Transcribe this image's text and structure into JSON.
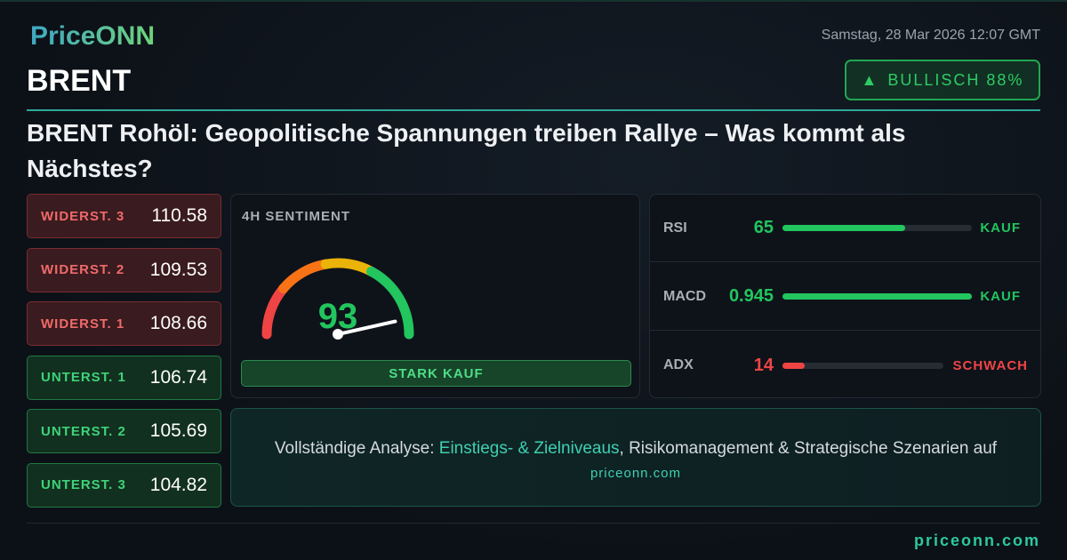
{
  "brand": {
    "logo": "PriceONN",
    "footer_url": "priceonn.com"
  },
  "header": {
    "date": "Samstag, 28 Mar 2026 12:07 GMT",
    "symbol": "BRENT",
    "badge": {
      "icon": "triangle-up-icon",
      "label": "BULLISCH 88%"
    },
    "headline": "BRENT Rohöl: Geopolitische Spannungen treiben Rallye – Was kommt als Nächstes?"
  },
  "levels": [
    {
      "label": "WIDERST. 3",
      "value": "110.58",
      "type": "resistance"
    },
    {
      "label": "WIDERST. 2",
      "value": "109.53",
      "type": "resistance"
    },
    {
      "label": "WIDERST. 1",
      "value": "108.66",
      "type": "resistance"
    },
    {
      "label": "UNTERST. 1",
      "value": "106.74",
      "type": "support"
    },
    {
      "label": "UNTERST. 2",
      "value": "105.69",
      "type": "support"
    },
    {
      "label": "UNTERST. 3",
      "value": "104.82",
      "type": "support"
    }
  ],
  "sentiment": {
    "title": "4H SENTIMENT",
    "score": "93",
    "score_value": 93,
    "verdict": "STARK KAUF"
  },
  "indicators": [
    {
      "name": "RSI",
      "value": "65",
      "level_percent": 65,
      "signal": "KAUF",
      "color": "#22c55e"
    },
    {
      "name": "MACD",
      "value": "0.945",
      "level_percent": 100,
      "signal": "KAUF",
      "color": "#22c55e"
    },
    {
      "name": "ADX",
      "value": "14",
      "level_percent": 14,
      "signal": "SCHWACH",
      "color": "#ef4444"
    }
  ],
  "cta": {
    "prefix": "Vollständige Analyse: ",
    "highlight": "Einstiegs- & Zielniveaus",
    "suffix": ", Risikomanagement & Strategische Szenarien auf",
    "url": "priceonn.com"
  },
  "colors": {
    "bullish": "#22c55e",
    "bearish": "#ef4444",
    "accent": "#2ec8a0"
  }
}
